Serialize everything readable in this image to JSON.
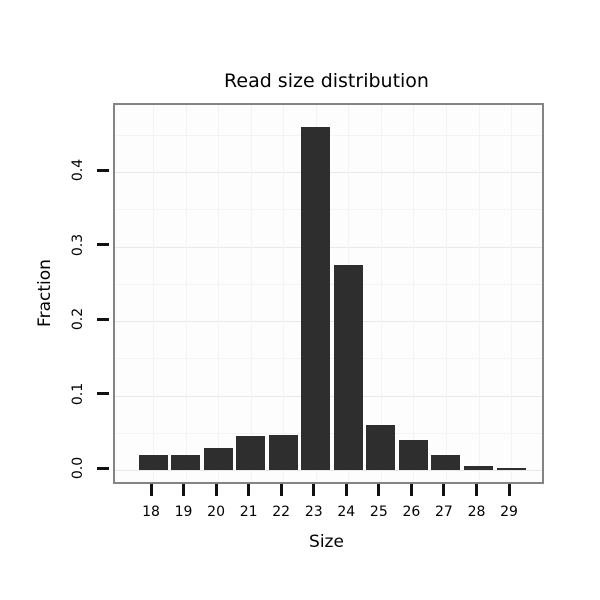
{
  "chart_data": {
    "type": "bar",
    "title": "Read size distribution",
    "xlabel": "Size",
    "ylabel": "Fraction",
    "categories": [
      "18",
      "19",
      "20",
      "21",
      "22",
      "23",
      "24",
      "25",
      "26",
      "27",
      "28",
      "29"
    ],
    "values": [
      0.02,
      0.02,
      0.03,
      0.045,
      0.047,
      0.46,
      0.275,
      0.06,
      0.04,
      0.02,
      0.005,
      0.003
    ],
    "ylim": [
      0,
      0.49
    ],
    "yticks": [
      0.0,
      0.1,
      0.2,
      0.3,
      0.4
    ],
    "ytick_labels": [
      "0.0",
      "0.1",
      "0.2",
      "0.3",
      "0.4"
    ],
    "yticks_minor": [
      0.05,
      0.15,
      0.25,
      0.35,
      0.45
    ],
    "grid": true,
    "legend": "none",
    "bar_color": "#2e2e2e",
    "panel_border_color": "#848484",
    "grid_color": "#e9e9e9"
  }
}
